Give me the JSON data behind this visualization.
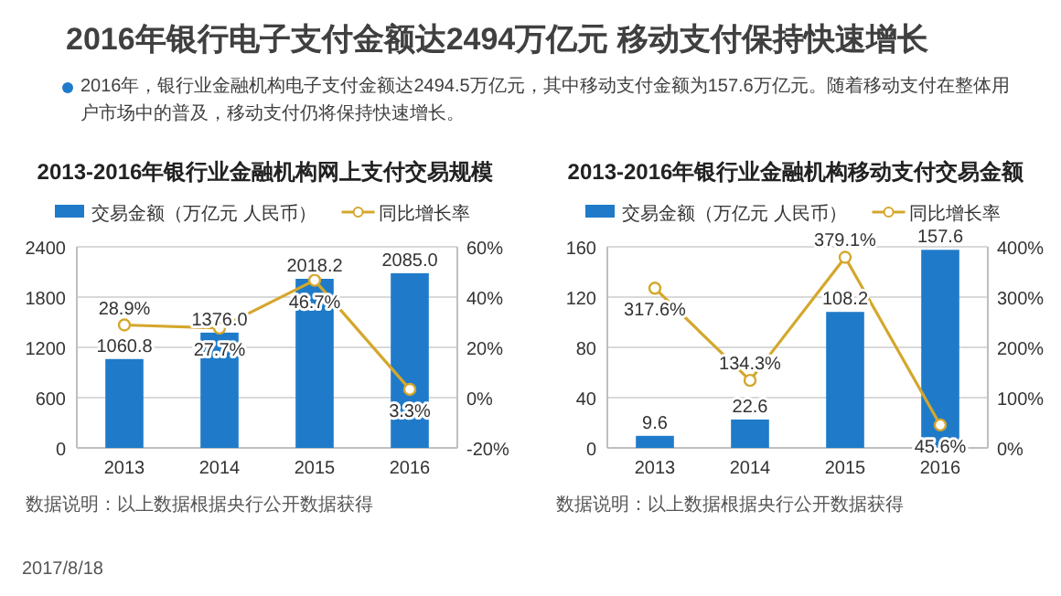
{
  "chart_data": [
    {
      "type": "other",
      "title": "2016年银行电子支付金额达2494万亿元  移动支付保持快速增长",
      "annotations": [
        "2016年，银行业金融机构电子支付金额达2494.5万亿元，其中移动支付金额为157.6万亿元。随着移动支付在整体用户市场中的普及，移动支付仍将保持快速增长。",
        "2017/8/18"
      ]
    },
    {
      "type": "bar",
      "title": "2013-2016年银行业金融机构网上支付交易规模",
      "categories": [
        "2013",
        "2014",
        "2015",
        "2016"
      ],
      "legend": "top",
      "grid": "y",
      "series": [
        {
          "name": "交易金额（万亿元 人民币）",
          "type": "bar",
          "color": "#1f7bc9",
          "values": [
            1060.8,
            1376.0,
            2018.2,
            2085.0
          ],
          "value_labels": [
            "1060.8",
            "1376.0",
            "2018.2",
            "2085.0"
          ]
        },
        {
          "name": "同比增长率",
          "type": "line",
          "axis": "y2",
          "color": "#d4a72c",
          "marker": "circle",
          "values": [
            28.9,
            27.7,
            46.7,
            3.3
          ],
          "value_labels": [
            "28.9%",
            "27.7%",
            "46.7%",
            "3.3%"
          ]
        }
      ],
      "ylim": [
        0,
        2400
      ],
      "yticks": [
        0,
        600,
        1200,
        1800,
        2400
      ],
      "y2lim": [
        -20,
        60
      ],
      "y2ticks": [
        {
          "value": -20,
          "label": "-20%"
        },
        {
          "value": 0,
          "label": "0%"
        },
        {
          "value": 20,
          "label": "20%"
        },
        {
          "value": 40,
          "label": "40%"
        },
        {
          "value": 60,
          "label": "60%"
        }
      ],
      "annotations": [
        "数据说明：以上数据根据央行公开数据获得"
      ]
    },
    {
      "type": "bar",
      "title": "2013-2016年银行业金融机构移动支付交易金额",
      "categories": [
        "2013",
        "2014",
        "2015",
        "2016"
      ],
      "legend": "top",
      "grid": "y",
      "series": [
        {
          "name": "交易金额（万亿元 人民币）",
          "type": "bar",
          "color": "#1f7bc9",
          "values": [
            9.6,
            22.6,
            108.2,
            157.6
          ],
          "value_labels": [
            "9.6",
            "22.6",
            "108.2",
            "157.6"
          ]
        },
        {
          "name": "同比增长率",
          "type": "line",
          "axis": "y2",
          "color": "#d4a72c",
          "marker": "circle",
          "values": [
            317.6,
            134.3,
            379.1,
            45.6
          ],
          "value_labels": [
            "317.6%",
            "134.3%",
            "379.1%",
            "45.6%"
          ]
        }
      ],
      "ylim": [
        0,
        160
      ],
      "yticks": [
        0,
        40,
        80,
        120,
        160
      ],
      "y2lim": [
        0,
        400
      ],
      "y2ticks": [
        {
          "value": 0,
          "label": "0%"
        },
        {
          "value": 100,
          "label": "100%"
        },
        {
          "value": 200,
          "label": "200%"
        },
        {
          "value": 300,
          "label": "300%"
        },
        {
          "value": 400,
          "label": "400%"
        }
      ],
      "annotations": [
        "数据说明：以上数据根据央行公开数据获得"
      ]
    }
  ]
}
